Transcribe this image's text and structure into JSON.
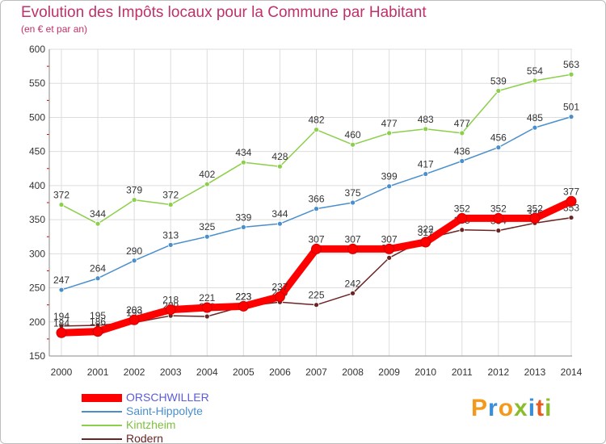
{
  "title": "Evolution des Impôts locaux pour la Commune par Habitant",
  "subtitle": "(en € et par an)",
  "logo": {
    "letters": [
      "P",
      "r",
      "o",
      "x",
      "i",
      "t",
      "i"
    ],
    "colors": [
      "#f39a1d",
      "#3a8ed8",
      "#f39a1d",
      "#8bbd2a",
      "#3a8ed8",
      "#e65c1e",
      "#8bbd2a"
    ]
  },
  "chart_data": {
    "type": "line",
    "title": "Evolution des Impôts locaux pour la Commune par Habitant",
    "subtitle": "(en € et par an)",
    "x": [
      "2000",
      "2001",
      "2002",
      "2003",
      "2004",
      "2005",
      "2006",
      "2007",
      "2008",
      "2009",
      "2010",
      "2011",
      "2012",
      "2013",
      "2014"
    ],
    "ylim": [
      150,
      600
    ],
    "yticks": [
      150,
      200,
      250,
      300,
      350,
      400,
      450,
      500,
      550,
      600
    ],
    "grid": true,
    "legend": "bottom-left",
    "series": [
      {
        "name": "Kintzheim",
        "color": "#8ccf4a",
        "values": [
          372,
          344,
          379,
          372,
          402,
          434,
          428,
          482,
          460,
          477,
          483,
          477,
          539,
          554,
          563
        ]
      },
      {
        "name": "Saint-Hippolyte",
        "color": "#4a8fcc",
        "values": [
          247,
          264,
          290,
          313,
          325,
          339,
          344,
          366,
          375,
          399,
          417,
          436,
          456,
          485,
          501
        ]
      },
      {
        "name": "Rodern",
        "color": "#6b2424",
        "values": [
          194,
          195,
          199,
          209,
          208,
          223,
          229,
          225,
          242,
          294,
          322,
          335,
          334,
          345,
          353
        ]
      },
      {
        "name": "ORSCHWILLER",
        "color": "#ff0000",
        "values": [
          184,
          186,
          203,
          218,
          221,
          223,
          237,
          307,
          307,
          307,
          317,
          352,
          352,
          352,
          377
        ]
      }
    ],
    "legend_order": [
      "ORSCHWILLER",
      "Saint-Hippolyte",
      "Kintzheim",
      "Rodern"
    ]
  }
}
